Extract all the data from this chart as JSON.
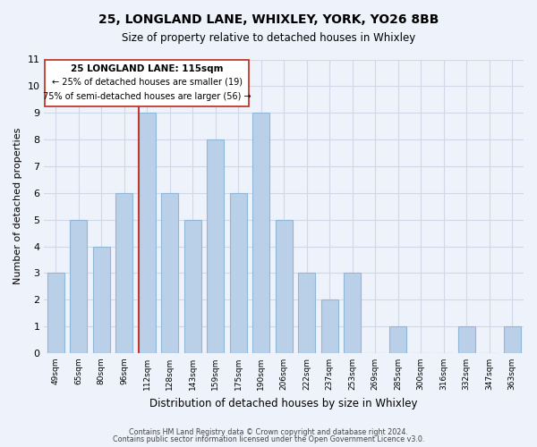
{
  "title": "25, LONGLAND LANE, WHIXLEY, YORK, YO26 8BB",
  "subtitle": "Size of property relative to detached houses in Whixley",
  "xlabel": "Distribution of detached houses by size in Whixley",
  "ylabel": "Number of detached properties",
  "categories": [
    "49sqm",
    "65sqm",
    "80sqm",
    "96sqm",
    "112sqm",
    "128sqm",
    "143sqm",
    "159sqm",
    "175sqm",
    "190sqm",
    "206sqm",
    "222sqm",
    "237sqm",
    "253sqm",
    "269sqm",
    "285sqm",
    "300sqm",
    "316sqm",
    "332sqm",
    "347sqm",
    "363sqm"
  ],
  "values": [
    3,
    5,
    4,
    6,
    9,
    6,
    5,
    8,
    6,
    9,
    5,
    3,
    2,
    3,
    0,
    1,
    0,
    0,
    1,
    0,
    1
  ],
  "bar_color": "#bad0e8",
  "bar_edge_color": "#8fb8d8",
  "highlight_index": 4,
  "highlight_color": "#c0392b",
  "ylim": [
    0,
    11
  ],
  "yticks": [
    0,
    1,
    2,
    3,
    4,
    5,
    6,
    7,
    8,
    9,
    10,
    11
  ],
  "annotation_title": "25 LONGLAND LANE: 115sqm",
  "annotation_line1": "← 25% of detached houses are smaller (19)",
  "annotation_line2": "75% of semi-detached houses are larger (56) →",
  "footer1": "Contains HM Land Registry data © Crown copyright and database right 2024.",
  "footer2": "Contains public sector information licensed under the Open Government Licence v3.0.",
  "background_color": "#eef2fb",
  "grid_color": "#d0d8e8"
}
